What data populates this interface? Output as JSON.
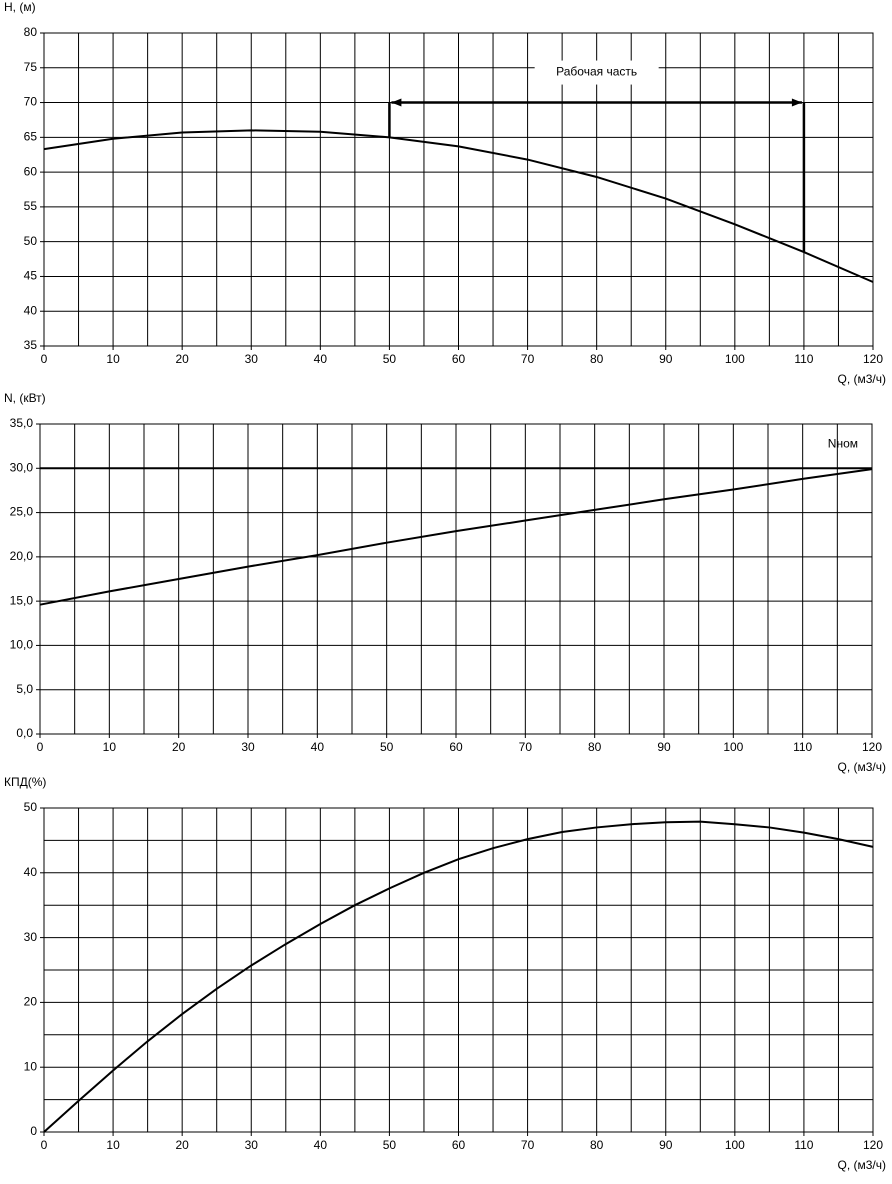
{
  "chart_data": [
    {
      "type": "line",
      "y_label": "H, (м)",
      "x_label": "Q, (м3/ч)",
      "x": [
        0,
        10,
        20,
        30,
        40,
        50,
        60,
        70,
        80,
        90,
        100,
        110,
        120
      ],
      "values": [
        63.3,
        64.8,
        65.7,
        66,
        65.8,
        65,
        63.7,
        61.8,
        59.3,
        56.2,
        52.5,
        48.5,
        44.2
      ],
      "color": "#000000",
      "xlim": [
        0,
        120
      ],
      "xticks": [
        0,
        10,
        20,
        30,
        40,
        50,
        60,
        70,
        80,
        90,
        100,
        110,
        120
      ],
      "ylim": [
        35,
        80
      ],
      "yticks": [
        35,
        40,
        45,
        50,
        55,
        60,
        65,
        70,
        75,
        80
      ],
      "grid": true,
      "minor_grid": [
        "x"
      ],
      "annotations": [
        {
          "text": "Рабочая часть",
          "x": [
            50,
            110
          ],
          "y": 70
        }
      ]
    },
    {
      "type": "line",
      "y_label": "N, (кВт)",
      "x_label": "Q, (м3/ч)",
      "x": [
        0,
        10,
        20,
        30,
        40,
        50,
        60,
        70,
        80,
        90,
        100,
        110,
        120
      ],
      "values": [
        14.6,
        16.1,
        17.5,
        18.9,
        20.2,
        21.6,
        22.9,
        24.1,
        25.3,
        26.5,
        27.6,
        28.8,
        29.9
      ],
      "color": "#000000",
      "xlim": [
        0,
        120
      ],
      "xticks": [
        0,
        10,
        20,
        30,
        40,
        50,
        60,
        70,
        80,
        90,
        100,
        110,
        120
      ],
      "ylim": [
        0,
        35
      ],
      "yticks": [
        {
          "value": 0,
          "label": "0,0"
        },
        {
          "value": 5,
          "label": "5,0"
        },
        {
          "value": 10,
          "label": "10,0"
        },
        {
          "value": 15,
          "label": "15,0"
        },
        {
          "value": 20,
          "label": "20,0"
        },
        {
          "value": 25,
          "label": "25,0"
        },
        {
          "value": 30,
          "label": "30,0"
        },
        {
          "value": 35,
          "label": "35,0"
        }
      ],
      "grid": true,
      "minor_grid": [
        "x"
      ],
      "reference_lines": [
        {
          "value": 30,
          "label": "Nном"
        }
      ]
    },
    {
      "type": "line",
      "y_label": "КПД(%)",
      "x_label": "Q, (м3/ч)",
      "x": [
        0,
        5,
        10,
        15,
        20,
        25,
        30,
        35,
        40,
        45,
        50,
        55,
        60,
        65,
        70,
        75,
        80,
        85,
        90,
        95,
        100,
        105,
        110,
        115,
        120
      ],
      "values": [
        0,
        4.8,
        9.5,
        14,
        18.2,
        22.1,
        25.7,
        29,
        32.1,
        35,
        37.6,
        40,
        42.1,
        43.8,
        45.2,
        46.3,
        47,
        47.5,
        47.8,
        47.9,
        47.5,
        47,
        46.2,
        45.2,
        44
      ],
      "color": "#000000",
      "xlim": [
        0,
        120
      ],
      "xticks": [
        0,
        10,
        20,
        30,
        40,
        50,
        60,
        70,
        80,
        90,
        100,
        110,
        120
      ],
      "ylim": [
        0,
        50
      ],
      "yticks": [
        0,
        10,
        20,
        30,
        40,
        50
      ],
      "grid": true,
      "minor_grid": [
        "x",
        "y"
      ]
    }
  ]
}
